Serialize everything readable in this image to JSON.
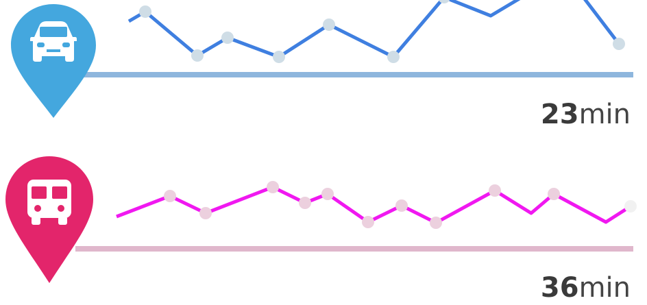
{
  "rows": [
    {
      "icon": "car-icon",
      "pin_color": "#44a7de",
      "line_color": "#3f7fe0",
      "dot_color": "#cfdde6",
      "baseline_color": "#8eb6dd",
      "value": "23",
      "unit": "min"
    },
    {
      "icon": "bus-icon",
      "pin_color": "#e3256b",
      "line_color": "#f018f0",
      "dot_color": "#ecd0de",
      "baseline_color": "#e0b7cc",
      "value": "36",
      "unit": "min"
    }
  ]
}
